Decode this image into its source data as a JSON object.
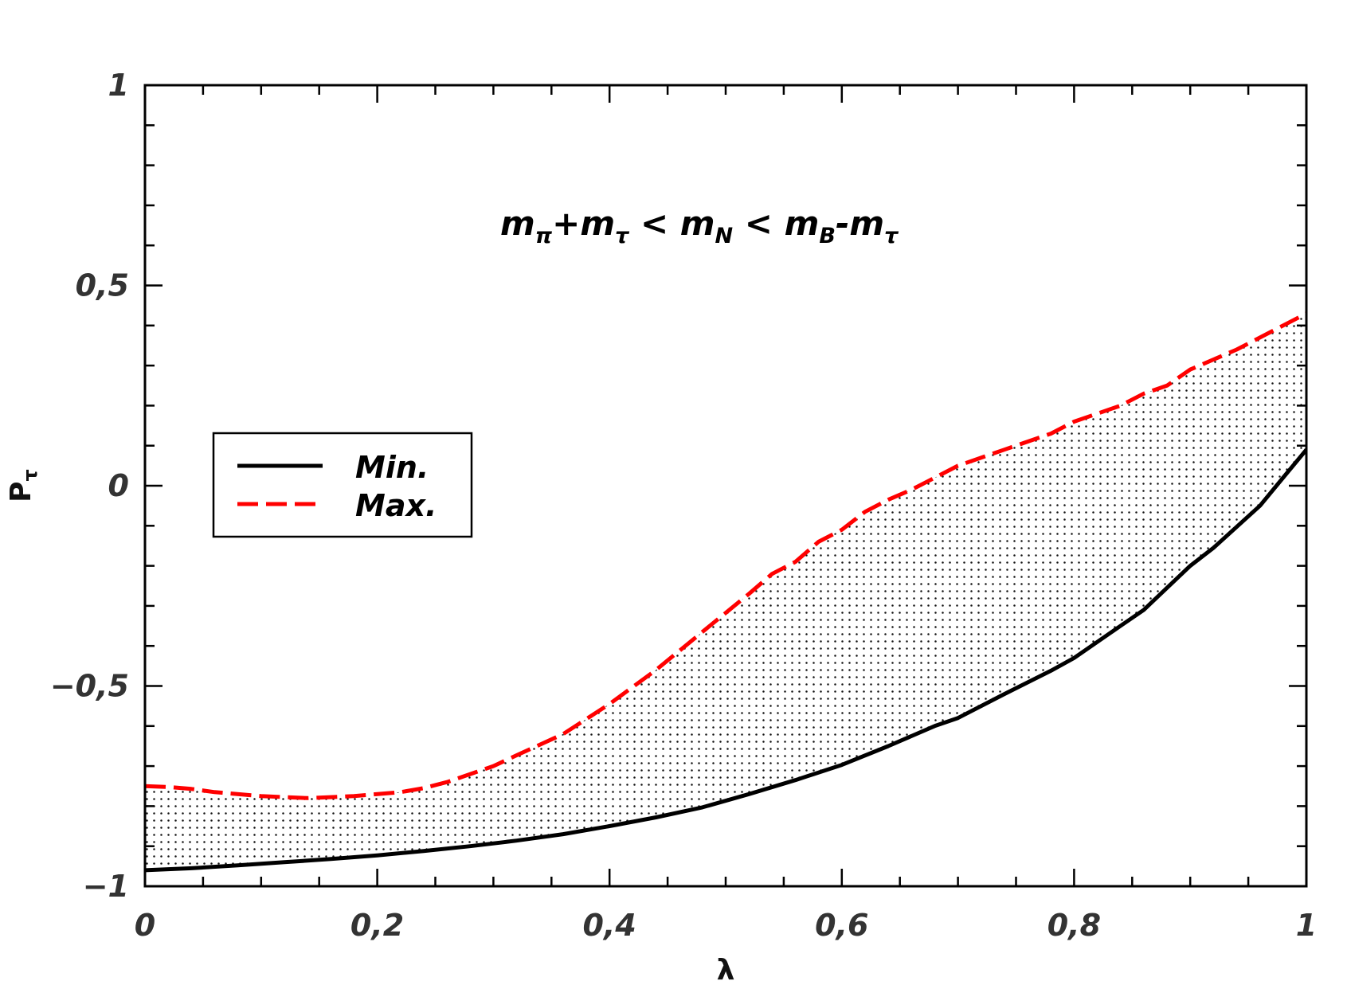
{
  "chart_data": {
    "type": "area",
    "xlabel": "λ",
    "ylabel": "P",
    "ylabel_sub": "τ",
    "xlim": [
      0,
      1
    ],
    "ylim": [
      -1,
      1
    ],
    "x_ticks": [
      {
        "value": 0,
        "label": "0"
      },
      {
        "value": 0.2,
        "label": "0,2"
      },
      {
        "value": 0.4,
        "label": "0,4"
      },
      {
        "value": 0.6,
        "label": "0,6"
      },
      {
        "value": 0.8,
        "label": "0,8"
      },
      {
        "value": 1,
        "label": "1"
      }
    ],
    "y_ticks": [
      {
        "value": -1,
        "label": "−1"
      },
      {
        "value": -0.5,
        "label": "−0,5"
      },
      {
        "value": 0,
        "label": "0"
      },
      {
        "value": 0.5,
        "label": "0,5"
      },
      {
        "value": 1,
        "label": "1"
      }
    ],
    "grid": false,
    "legend_position": "center-left",
    "annotation": {
      "parts": [
        {
          "t": "m",
          "k": "n"
        },
        {
          "t": "π",
          "k": "sub"
        },
        {
          "t": "+m",
          "k": "n"
        },
        {
          "t": "τ",
          "k": "sub"
        },
        {
          "t": " < m",
          "k": "n"
        },
        {
          "t": "N",
          "k": "sub"
        },
        {
          "t": " < m",
          "k": "n"
        },
        {
          "t": "B",
          "k": "sub"
        },
        {
          "t": "-m",
          "k": "n"
        },
        {
          "t": "τ",
          "k": "sub"
        }
      ]
    },
    "fill": {
      "between": [
        "Min.",
        "Max."
      ],
      "pattern": "dots"
    },
    "series": [
      {
        "name": "Min.",
        "color": "#000000",
        "style": "solid",
        "x": [
          0,
          0.04,
          0.08,
          0.12,
          0.16,
          0.2,
          0.24,
          0.28,
          0.32,
          0.36,
          0.4,
          0.44,
          0.48,
          0.52,
          0.56,
          0.6,
          0.64,
          0.68,
          0.7,
          0.74,
          0.78,
          0.8,
          0.84,
          0.86,
          0.9,
          0.92,
          0.96,
          0.98,
          1.0
        ],
        "y": [
          -0.96,
          -0.955,
          -0.948,
          -0.94,
          -0.932,
          -0.923,
          -0.912,
          -0.9,
          -0.886,
          -0.87,
          -0.85,
          -0.828,
          -0.803,
          -0.77,
          -0.735,
          -0.697,
          -0.65,
          -0.6,
          -0.58,
          -0.52,
          -0.462,
          -0.43,
          -0.35,
          -0.31,
          -0.2,
          -0.155,
          -0.05,
          0.02,
          0.09
        ]
      },
      {
        "name": "Max.",
        "color": "#ff0000",
        "style": "dashed",
        "x": [
          0,
          0.02,
          0.04,
          0.06,
          0.1,
          0.14,
          0.18,
          0.22,
          0.24,
          0.26,
          0.3,
          0.32,
          0.36,
          0.4,
          0.44,
          0.48,
          0.52,
          0.54,
          0.56,
          0.58,
          0.6,
          0.62,
          0.64,
          0.66,
          0.7,
          0.74,
          0.78,
          0.8,
          0.84,
          0.86,
          0.88,
          0.9,
          0.94,
          0.98,
          1.0
        ],
        "y": [
          -0.75,
          -0.752,
          -0.757,
          -0.765,
          -0.775,
          -0.78,
          -0.775,
          -0.765,
          -0.755,
          -0.74,
          -0.7,
          -0.673,
          -0.62,
          -0.545,
          -0.46,
          -0.365,
          -0.27,
          -0.22,
          -0.19,
          -0.14,
          -0.11,
          -0.065,
          -0.035,
          -0.01,
          0.05,
          0.09,
          0.13,
          0.16,
          0.2,
          0.23,
          0.25,
          0.29,
          0.34,
          0.4,
          0.43
        ]
      }
    ]
  }
}
